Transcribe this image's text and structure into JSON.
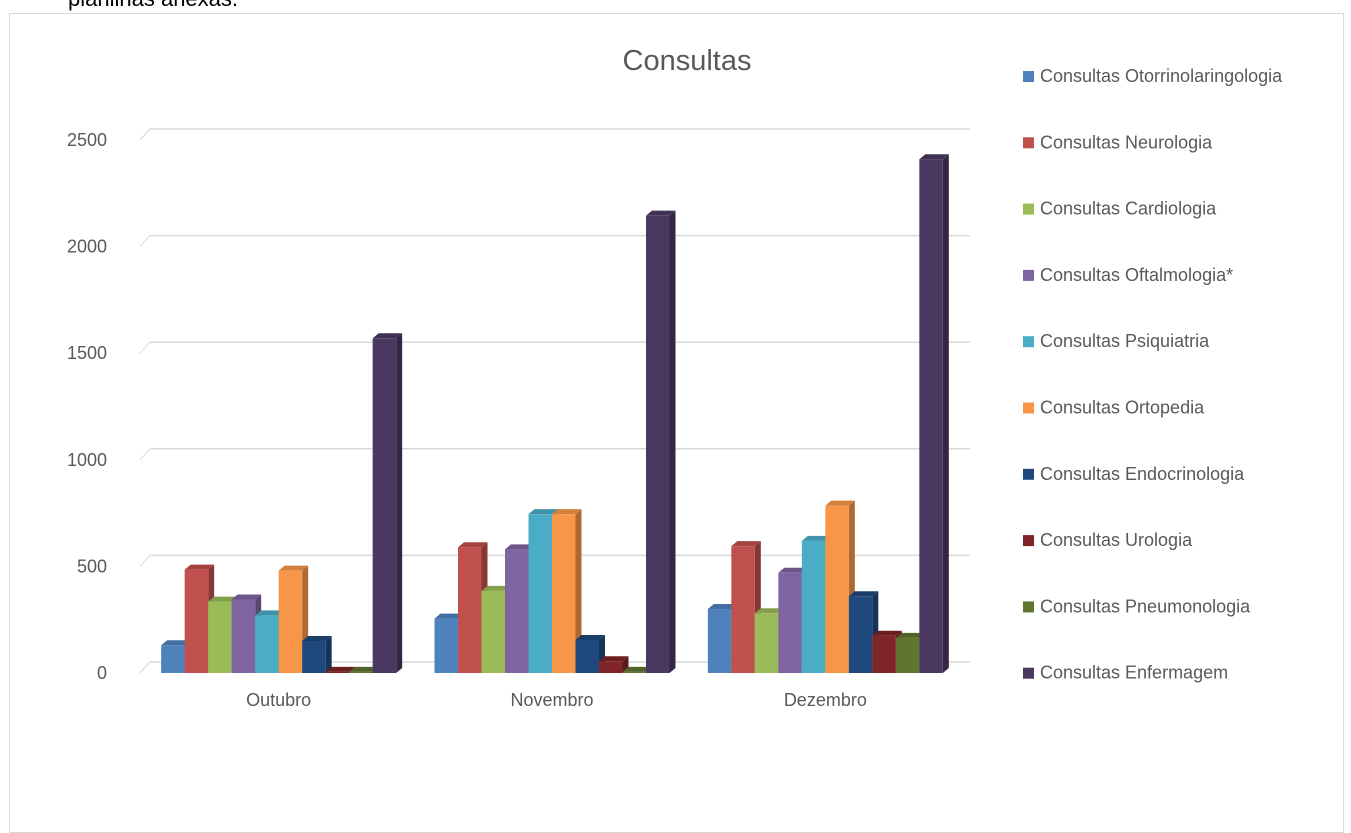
{
  "page": {
    "top_text": "planilhas anexas."
  },
  "chart_data": {
    "type": "bar",
    "title": "Consultas",
    "xlabel": "",
    "ylabel": "",
    "ylim": [
      0,
      2500
    ],
    "yticks": [
      0,
      500,
      1000,
      1500,
      2000,
      2500
    ],
    "grid": true,
    "legend_position": "right",
    "categories": [
      "Outubro",
      "Novembro",
      "Dezembro"
    ],
    "series": [
      {
        "name": "Consultas Otorrinolaringologia",
        "color": "#4f81bd",
        "values": [
          130,
          255,
          300
        ]
      },
      {
        "name": "Consultas Neurologia",
        "color": "#c0504d",
        "values": [
          485,
          590,
          595
        ]
      },
      {
        "name": "Consultas Cardiologia",
        "color": "#9bbb59",
        "values": [
          335,
          385,
          280
        ]
      },
      {
        "name": "Consultas Oftalmologia*",
        "color": "#8064a2",
        "values": [
          345,
          580,
          470
        ]
      },
      {
        "name": "Consultas Psiquiatria",
        "color": "#4bacc6",
        "values": [
          270,
          745,
          620
        ]
      },
      {
        "name": "Consultas Ortopedia",
        "color": "#f79646",
        "values": [
          480,
          745,
          785
        ]
      },
      {
        "name": "Consultas Endocrinologia",
        "color": "#1f497d",
        "values": [
          150,
          155,
          360
        ]
      },
      {
        "name": "Consultas Urologia",
        "color": "#7f2427",
        "values": [
          5,
          55,
          175
        ]
      },
      {
        "name": "Consultas Pneumonologia",
        "color": "#5f7530",
        "values": [
          5,
          5,
          165
        ]
      },
      {
        "name": "Consultas Enfermagem",
        "color": "#4b3860",
        "values": [
          1570,
          2145,
          2410
        ]
      }
    ]
  }
}
